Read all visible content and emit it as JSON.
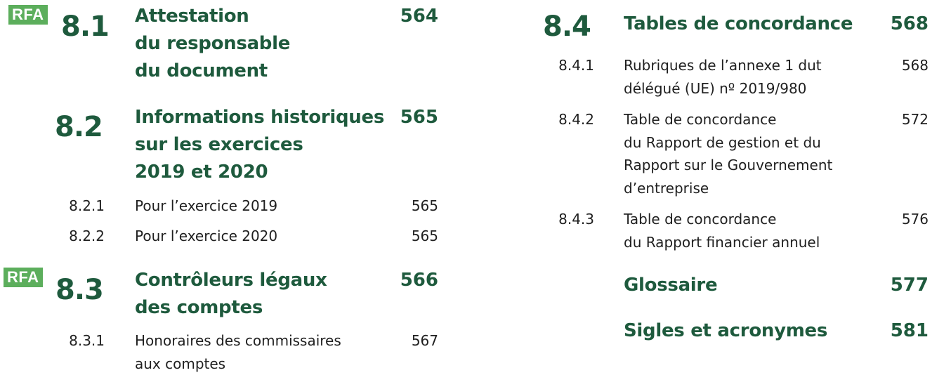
{
  "colors": {
    "accent": "#1e5a3d",
    "badge": "#5cae5c",
    "text": "#1f1f1f"
  },
  "badge_label": "RFA",
  "left_column": {
    "s81": {
      "number": "8.1",
      "title_lines": [
        "Attestation",
        "du responsable",
        "du document"
      ],
      "page": "564"
    },
    "s82": {
      "number": "8.2",
      "title_lines": [
        "Informations historiques",
        "sur les exercices",
        "2019 et 2020"
      ],
      "page": "565",
      "subsections": [
        {
          "number": "8.2.1",
          "title_lines": [
            "Pour l’exercice 2019"
          ],
          "page": "565"
        },
        {
          "number": "8.2.2",
          "title_lines": [
            "Pour l’exercice 2020"
          ],
          "page": "565"
        }
      ]
    },
    "s83": {
      "number": "8.3",
      "title_lines": [
        "Contrôleurs légaux",
        "des comptes"
      ],
      "page": "566",
      "subsections": [
        {
          "number": "8.3.1",
          "title_lines": [
            "Honoraires des commissaires",
            "aux comptes"
          ],
          "page": "567"
        }
      ]
    }
  },
  "right_column": {
    "s84": {
      "number": "8.4",
      "title_lines": [
        "Tables de concordance"
      ],
      "page": "568",
      "subsections": [
        {
          "number": "8.4.1",
          "title_lines": [
            "Rubriques de l’annexe 1 dut",
            "délégué (UE) nº 2019/980"
          ],
          "page": "568"
        },
        {
          "number": "8.4.2",
          "title_lines": [
            "Table de concordance",
            "du Rapport de gestion et du",
            "Rapport sur le Gouvernement",
            "d’entreprise"
          ],
          "page": "572"
        },
        {
          "number": "8.4.3",
          "title_lines": [
            "Table de concordance",
            "du Rapport financier annuel"
          ],
          "page": "576"
        }
      ]
    },
    "glossaire": {
      "title_lines": [
        "Glossaire"
      ],
      "page": "577"
    },
    "sigles": {
      "title_lines": [
        "Sigles et acronymes"
      ],
      "page": "581"
    }
  }
}
